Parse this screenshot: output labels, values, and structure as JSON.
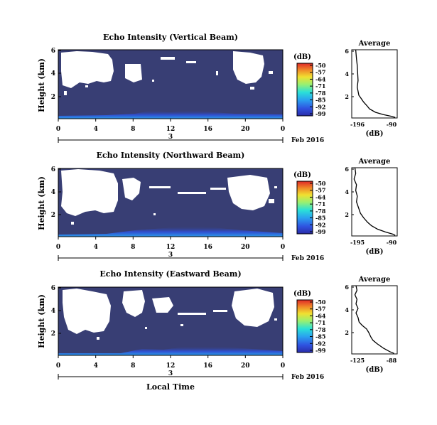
{
  "chart_data": [
    {
      "type": "heatmap",
      "title": "Echo Intensity (Vertical Beam)",
      "ylabel": "Height (km)",
      "x_ticks": [
        "0",
        "4",
        "8",
        "12",
        "16",
        "20",
        "0"
      ],
      "y_ticks": [
        "6",
        "4",
        "2"
      ],
      "date_label": "3",
      "month_label": "Feb 2016",
      "xlim": [
        0,
        24
      ],
      "ylim": [
        0,
        6
      ],
      "colorbar": {
        "unit": "(dB)",
        "ticks": [
          "-50",
          "-57",
          "-64",
          "-71",
          "-78",
          "-85",
          "-92",
          "-99"
        ]
      },
      "profile": {
        "title": "Average",
        "xlabel": "(dB)",
        "x_ticks": [
          "-196",
          "-90"
        ],
        "y_ticks": [
          "6",
          "4",
          "2"
        ],
        "xlim": [
          -200,
          -85
        ],
        "ylim": [
          0,
          6
        ],
        "points": [
          [
            -190,
            6.0
          ],
          [
            -188,
            5.2
          ],
          [
            -186,
            4.6
          ],
          [
            -185,
            4.0
          ],
          [
            -184,
            3.3
          ],
          [
            -186,
            2.7
          ],
          [
            -182,
            2.0
          ],
          [
            -176,
            1.7
          ],
          [
            -170,
            1.4
          ],
          [
            -162,
            1.1
          ],
          [
            -155,
            0.8
          ],
          [
            -140,
            0.5
          ],
          [
            -120,
            0.3
          ],
          [
            -100,
            0.15
          ],
          [
            -90,
            0.05
          ]
        ]
      }
    },
    {
      "type": "heatmap",
      "title": "Echo Intensity (Northward Beam)",
      "ylabel": "Height (km)",
      "x_ticks": [
        "0",
        "4",
        "8",
        "12",
        "16",
        "20",
        "0"
      ],
      "y_ticks": [
        "6",
        "4",
        "2"
      ],
      "date_label": "3",
      "month_label": "Feb 2016",
      "xlim": [
        0,
        24
      ],
      "ylim": [
        0,
        6
      ],
      "colorbar": {
        "unit": "(dB)",
        "ticks": [
          "-50",
          "-57",
          "-64",
          "-71",
          "-78",
          "-85",
          "-92",
          "-99"
        ]
      },
      "profile": {
        "title": "Average",
        "xlabel": "(dB)",
        "x_ticks": [
          "-195",
          "-90"
        ],
        "y_ticks": [
          "6",
          "4",
          "2"
        ],
        "xlim": [
          -200,
          -85
        ],
        "ylim": [
          0,
          6
        ],
        "points": [
          [
            -192,
            6.0
          ],
          [
            -190,
            5.5
          ],
          [
            -194,
            5.0
          ],
          [
            -188,
            4.5
          ],
          [
            -190,
            4.0
          ],
          [
            -186,
            3.5
          ],
          [
            -188,
            3.0
          ],
          [
            -182,
            2.4
          ],
          [
            -178,
            2.0
          ],
          [
            -170,
            1.6
          ],
          [
            -160,
            1.2
          ],
          [
            -150,
            0.9
          ],
          [
            -135,
            0.6
          ],
          [
            -115,
            0.35
          ],
          [
            -95,
            0.15
          ],
          [
            -90,
            0.05
          ]
        ]
      }
    },
    {
      "type": "heatmap",
      "title": "Echo Intensity (Eastward Beam)",
      "ylabel": "Height (km)",
      "xlabel": "Local Time",
      "x_ticks": [
        "0",
        "4",
        "8",
        "12",
        "16",
        "20",
        "0"
      ],
      "y_ticks": [
        "6",
        "4",
        "2"
      ],
      "date_label": "3",
      "month_label": "Feb 2016",
      "xlim": [
        0,
        24
      ],
      "ylim": [
        0,
        6
      ],
      "colorbar": {
        "unit": "(dB)",
        "ticks": [
          "-50",
          "-57",
          "-64",
          "-71",
          "-78",
          "-85",
          "-92",
          "-99"
        ]
      },
      "profile": {
        "title": "Average",
        "xlabel": "(dB)",
        "x_ticks": [
          "-125",
          "-88"
        ],
        "y_ticks": [
          "6",
          "4",
          "2"
        ],
        "xlim": [
          -128,
          -85
        ],
        "ylim": [
          0,
          6
        ],
        "points": [
          [
            -124,
            6.0
          ],
          [
            -123,
            5.6
          ],
          [
            -125,
            5.2
          ],
          [
            -123,
            4.8
          ],
          [
            -124,
            4.4
          ],
          [
            -122,
            4.0
          ],
          [
            -124,
            3.6
          ],
          [
            -122,
            3.2
          ],
          [
            -121,
            2.8
          ],
          [
            -118,
            2.5
          ],
          [
            -114,
            2.2
          ],
          [
            -112,
            1.9
          ],
          [
            -110,
            1.5
          ],
          [
            -108,
            1.2
          ],
          [
            -104,
            0.9
          ],
          [
            -98,
            0.5
          ],
          [
            -92,
            0.2
          ],
          [
            -88,
            0.05
          ]
        ]
      }
    }
  ],
  "colors": {
    "background_field": "#383e74",
    "gaps": "#ffffff",
    "colormap": [
      "#2a2ca8",
      "#2f52e0",
      "#2aa0f0",
      "#2ae0d8",
      "#9af070",
      "#f0e030",
      "#f08a28",
      "#e02828"
    ]
  }
}
